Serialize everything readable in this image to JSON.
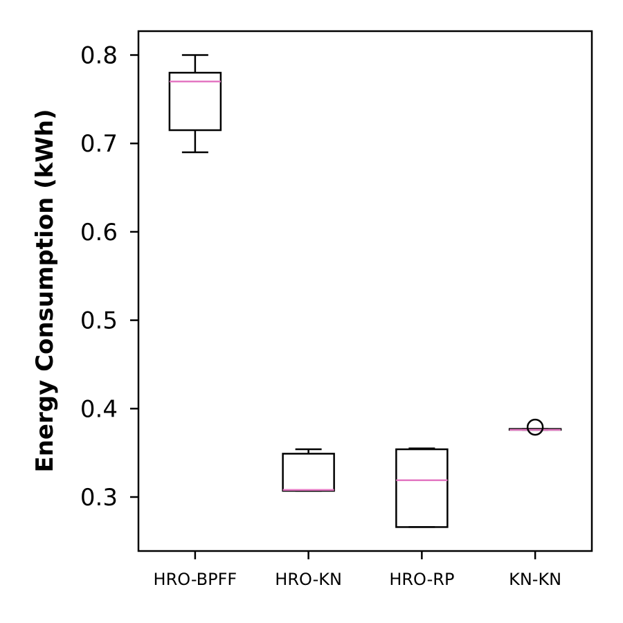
{
  "chart_data": {
    "type": "box",
    "ylabel": "Energy Consumption (kWh)",
    "xlabel": "",
    "ylim": [
      0.24,
      0.825
    ],
    "yticks": [
      0.3,
      0.4,
      0.5,
      0.6,
      0.7,
      0.8
    ],
    "ytick_labels": [
      "0.3",
      "0.4",
      "0.5",
      "0.6",
      "0.7",
      "0.8"
    ],
    "categories": [
      "HRO-BPFF",
      "HRO-KN",
      "HRO-RP",
      "KN-KN"
    ],
    "boxes": [
      {
        "category": "HRO-BPFF",
        "whisker_low": 0.69,
        "q1": 0.715,
        "median": 0.77,
        "q3": 0.78,
        "whisker_high": 0.8,
        "outliers": []
      },
      {
        "category": "HRO-KN",
        "whisker_low": 0.307,
        "q1": 0.307,
        "median": 0.308,
        "q3": 0.349,
        "whisker_high": 0.354,
        "outliers": []
      },
      {
        "category": "HRO-RP",
        "whisker_low": 0.266,
        "q1": 0.266,
        "median": 0.319,
        "q3": 0.354,
        "whisker_high": 0.355,
        "outliers": []
      },
      {
        "category": "KN-KN",
        "whisker_low": 0.376,
        "q1": 0.376,
        "median": 0.376,
        "q3": 0.377,
        "whisker_high": 0.377,
        "outliers": [
          0.379
        ]
      }
    ],
    "median_color": "#e377c2",
    "box_color": "#000000",
    "grid": false
  }
}
